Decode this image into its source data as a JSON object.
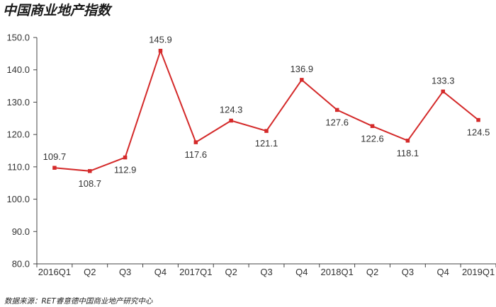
{
  "chart_data": {
    "type": "line",
    "title": "中国商业地产指数",
    "source": "数据来源：RET睿意德中国商业地产研究中心",
    "categories": [
      "2016Q1",
      "Q2",
      "Q3",
      "Q4",
      "2017Q1",
      "Q2",
      "Q3",
      "Q4",
      "2018Q1",
      "Q2",
      "Q3",
      "Q4",
      "2019Q1"
    ],
    "series": [
      {
        "values": [
          109.7,
          108.7,
          112.9,
          145.9,
          117.6,
          124.3,
          121.1,
          136.9,
          127.6,
          122.6,
          118.1,
          133.3,
          124.5
        ]
      }
    ],
    "ylim": [
      80.0,
      150.0
    ],
    "yticks": [
      "80.0",
      "90.0",
      "100.0",
      "110.0",
      "120.0",
      "130.0",
      "140.0",
      "150.0"
    ],
    "label_positions": [
      "above",
      "below",
      "below",
      "above",
      "below",
      "above",
      "below",
      "above",
      "below",
      "below",
      "below",
      "above",
      "below"
    ],
    "line_color": "#d42a2a",
    "grid": false
  }
}
